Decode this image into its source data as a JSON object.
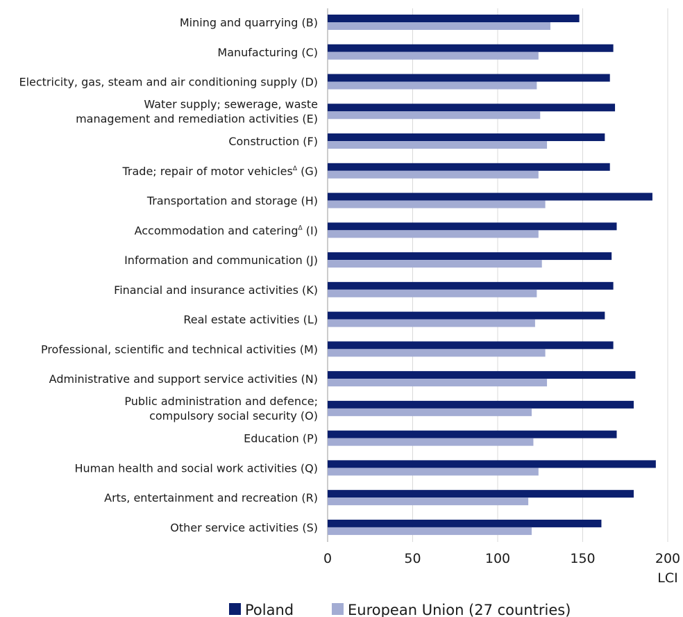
{
  "chart_data": {
    "type": "bar",
    "orientation": "horizontal",
    "categories": [
      [
        "Mining and quarrying (B)"
      ],
      [
        "Manufacturing (C)"
      ],
      [
        "Electricity, gas, steam and air conditioning supply (D)"
      ],
      [
        "Water supply; sewerage, waste",
        "management and remediation activities (E)"
      ],
      [
        "Construction (F)"
      ],
      [
        "Trade; repair of motor vehicles^ (G)"
      ],
      [
        "Transportation and storage (H)"
      ],
      [
        "Accommodation and catering^ (I)"
      ],
      [
        "Information and communication (J)"
      ],
      [
        "Financial and insurance activities (K)"
      ],
      [
        "Real estate activities (L)"
      ],
      [
        "Professional, scientific and technical activities (M)"
      ],
      [
        "Administrative and support service activities (N)"
      ],
      [
        "Public administration and defence;",
        "compulsory social security (O)"
      ],
      [
        "Education (P)"
      ],
      [
        "Human health and social work activities (Q)"
      ],
      [
        "Arts, entertainment and recreation (R)"
      ],
      [
        "Other service activities (S)"
      ]
    ],
    "superscript_mark": "Δ",
    "series": [
      {
        "name": "Poland",
        "color": "#0b1f6e",
        "values": [
          148,
          168,
          166,
          169,
          163,
          166,
          191,
          170,
          167,
          168,
          163,
          168,
          181,
          180,
          170,
          193,
          180,
          161
        ]
      },
      {
        "name": "European Union (27 countries)",
        "color": "#a3acd3",
        "values": [
          131,
          124,
          123,
          125,
          129,
          124,
          128,
          124,
          126,
          123,
          122,
          128,
          129,
          120,
          121,
          124,
          118,
          120
        ]
      }
    ],
    "xlim": [
      0,
      200
    ],
    "xticks": [
      0,
      50,
      100,
      150,
      200
    ],
    "xlabel": "LCI",
    "grid": true,
    "legend_position": "bottom"
  }
}
